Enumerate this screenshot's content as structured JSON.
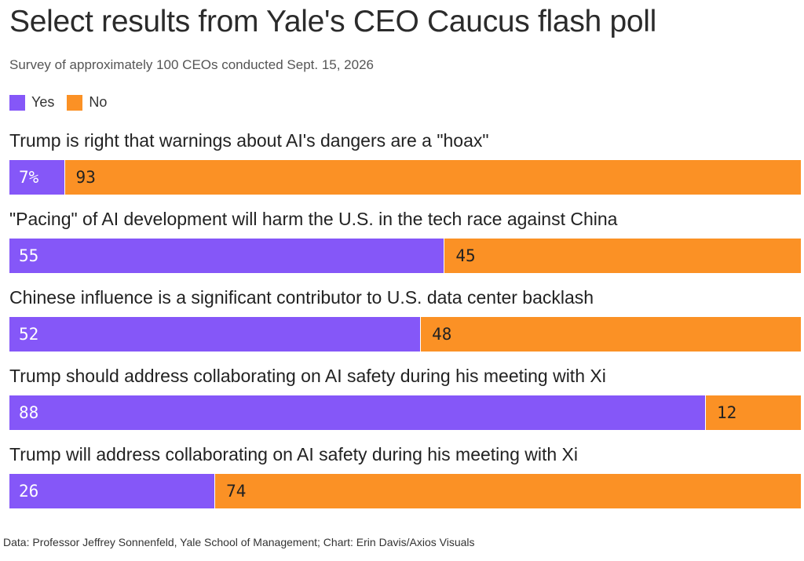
{
  "chart_data": {
    "type": "bar",
    "orientation": "horizontal",
    "stacked": true,
    "title": "Select results from Yale's CEO Caucus flash poll",
    "subtitle": "Survey of approximately 100 CEOs conducted Sept. 15, 2026",
    "categories": [
      "Trump is right that warnings about AI's dangers are a \"hoax\"",
      "\"Pacing\" of AI development will harm the U.S. in the tech race against China",
      "Chinese influence is a significant contributor to U.S. data center backlash",
      "Trump should address collaborating on AI safety during his meeting with Xi",
      "Trump will address collaborating on AI safety during his meeting with Xi"
    ],
    "series": [
      {
        "name": "Yes",
        "color": "#8557f8",
        "values": [
          7,
          55,
          52,
          88,
          26
        ],
        "labels": [
          "7%",
          "55",
          "52",
          "88",
          "26"
        ]
      },
      {
        "name": "No",
        "color": "#fb9125",
        "values": [
          93,
          45,
          48,
          12,
          74
        ],
        "labels": [
          "93",
          "45",
          "48",
          "12",
          "74"
        ]
      }
    ],
    "xlim": [
      0,
      100
    ],
    "legend_position": "top-left",
    "grid": false,
    "source": "Data: Professor Jeffrey Sonnenfeld, Yale School of Management; Chart: Erin Davis/Axios Visuals"
  }
}
